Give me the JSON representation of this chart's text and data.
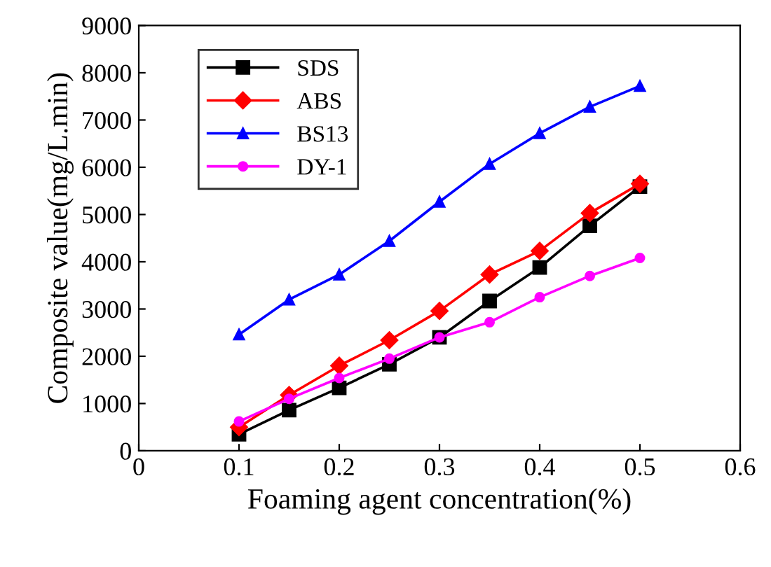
{
  "chart_data": {
    "type": "line",
    "xlabel": "Foaming agent concentration(%)",
    "ylabel": "Composite value(mg/L.min)",
    "x": [
      0.1,
      0.15,
      0.2,
      0.25,
      0.3,
      0.35,
      0.4,
      0.45,
      0.5
    ],
    "xlim": [
      0,
      0.6
    ],
    "xticks": [
      {
        "value": 0,
        "label": "0"
      },
      0.1,
      0.2,
      0.3,
      0.4,
      0.5,
      0.6
    ],
    "ylim": [
      0,
      9000
    ],
    "yticks": [
      0,
      1000,
      2000,
      3000,
      4000,
      5000,
      6000,
      7000,
      8000,
      9000
    ],
    "grid": false,
    "legend": "top left",
    "line_style": "solid",
    "series": [
      {
        "name": "SDS",
        "color": "#000000",
        "marker": "square",
        "values": [
          350,
          860,
          1330,
          1830,
          2400,
          3170,
          3880,
          4760,
          5590
        ]
      },
      {
        "name": "ABS",
        "color": "#ff0000",
        "marker": "diamond",
        "values": [
          500,
          1180,
          1800,
          2340,
          2960,
          3730,
          4230,
          5030,
          5650
        ]
      },
      {
        "name": "BS13",
        "color": "#0000ff",
        "marker": "triangle",
        "values": [
          2460,
          3200,
          3730,
          4440,
          5270,
          6070,
          6720,
          7280,
          7720
        ]
      },
      {
        "name": "DY-1",
        "color": "#ff00ff",
        "marker": "circle",
        "values": [
          620,
          1100,
          1540,
          1950,
          2400,
          2720,
          3250,
          3700,
          4080
        ]
      }
    ]
  }
}
